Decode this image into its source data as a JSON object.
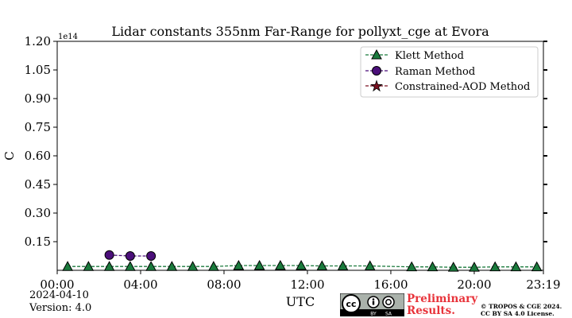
{
  "chart_data": {
    "type": "line",
    "title": "Lidar constants 355nm Far-Range for pollyxt_cge at Evora",
    "xlabel": "UTC",
    "ylabel": "C",
    "y_multiplier": "1e14",
    "xlim": [
      0.0,
      23.3167
    ],
    "ylim": [
      0.0,
      1.2
    ],
    "x_ticks": [
      0,
      4,
      8,
      12,
      16,
      20,
      23.3167
    ],
    "x_tick_labels": [
      "00:00",
      "04:00",
      "08:00",
      "12:00",
      "16:00",
      "20:00",
      "23:19"
    ],
    "y_ticks": [
      0.15,
      0.3,
      0.45,
      0.6,
      0.75,
      0.9,
      1.05,
      1.2
    ],
    "y_tick_labels": [
      "0.15",
      "0.30",
      "0.45",
      "0.60",
      "0.75",
      "0.90",
      "1.05",
      "1.20"
    ],
    "grid": false,
    "legend_position": "top-right",
    "series": [
      {
        "name": "Klett Method",
        "marker": "triangle",
        "color": "#1a7a3c",
        "x": [
          0.5,
          1.5,
          2.5,
          3.5,
          4.5,
          5.5,
          6.5,
          7.5,
          8.7,
          9.7,
          10.7,
          11.7,
          12.7,
          13.7,
          15.0,
          17.0,
          18.0,
          19.0,
          20.0,
          21.0,
          22.0,
          23.0
        ],
        "values": [
          0.02,
          0.02,
          0.02,
          0.02,
          0.02,
          0.02,
          0.02,
          0.02,
          0.025,
          0.025,
          0.025,
          0.025,
          0.023,
          0.023,
          0.023,
          0.018,
          0.018,
          0.016,
          0.016,
          0.018,
          0.018,
          0.018
        ]
      },
      {
        "name": "Raman Method",
        "marker": "circle",
        "color": "#4b0f7a",
        "x": [
          2.5,
          3.5,
          4.5
        ],
        "values": [
          0.08,
          0.075,
          0.075
        ]
      },
      {
        "name": "Constrained-AOD Method",
        "marker": "star",
        "color": "#7a1020",
        "x": [],
        "values": []
      }
    ]
  },
  "footer": {
    "date": "2024-04-10",
    "version": "Version: 4.0",
    "preliminary_line1": "Preliminary",
    "preliminary_line2": "Results.",
    "copyright_line1": "© TROPOS & CGE 2024.",
    "copyright_line2": "CC BY SA 4.0 License.",
    "cc_label": "cc",
    "by_label": "BY",
    "sa_label": "SA"
  }
}
